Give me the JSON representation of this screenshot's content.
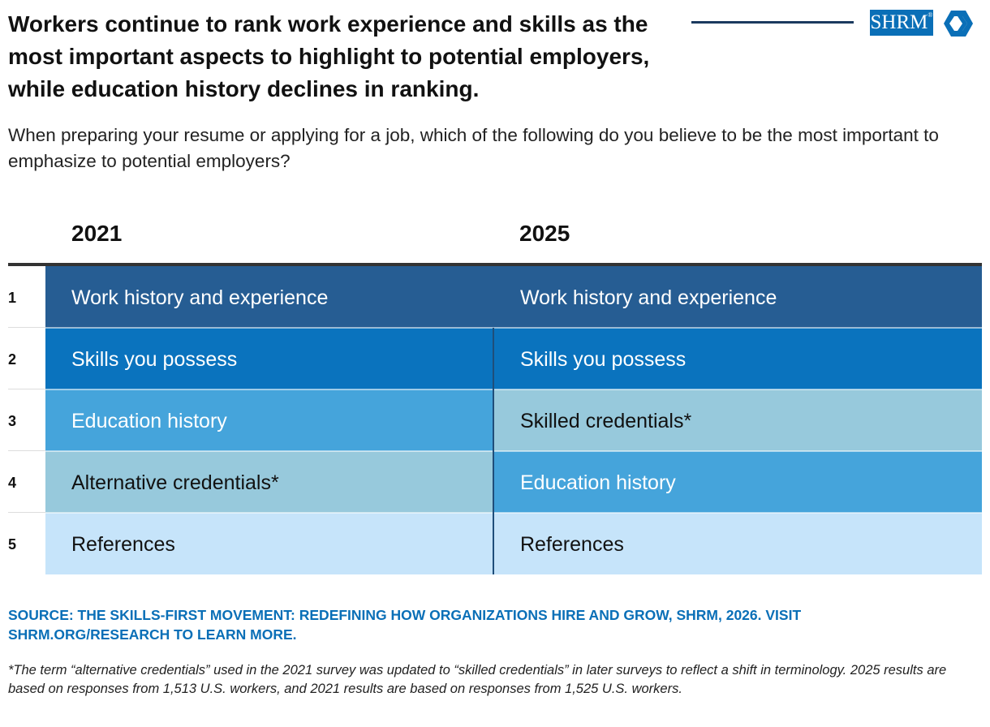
{
  "header": {
    "title": "Workers continue to rank work experience and skills as the most important aspects to highlight to potential employers, while education history declines in ranking.",
    "subtitle": "When preparing your resume or applying for a job, which of the following do you believe to be the most important to emphasize to potential employers?",
    "logo_text": "SHRM",
    "logo_registered": "®"
  },
  "chart_data": {
    "type": "table",
    "columns": [
      "2021",
      "2025"
    ],
    "ranks": [
      "1",
      "2",
      "3",
      "4",
      "5"
    ],
    "rows": [
      {
        "rank": "1",
        "2021": "Work history and experience",
        "2025": "Work history and experience"
      },
      {
        "rank": "2",
        "2021": "Skills you possess",
        "2025": "Skills you possess"
      },
      {
        "rank": "3",
        "2021": "Education history",
        "2025": "Skilled credentials*"
      },
      {
        "rank": "4",
        "2021": "Alternative credentials*",
        "2025": "Education history"
      },
      {
        "rank": "5",
        "2021": "References",
        "2025": "References"
      }
    ],
    "category_colors": {
      "Work history and experience": "#265d93",
      "Skills you possess": "#0a73be",
      "Education history": "#45a4db",
      "Alternative credentials*": "#97c9dc",
      "Skilled credentials*": "#97c9dc",
      "References": "#c6e4fa"
    },
    "text_colors": {
      "Work history and experience": "#ffffff",
      "Skills you possess": "#ffffff",
      "Education history": "#ffffff",
      "Alternative credentials*": "#111111",
      "Skilled credentials*": "#111111",
      "References": "#111111"
    }
  },
  "source": "SOURCE: THE SKILLS-FIRST MOVEMENT: REDEFINING HOW ORGANIZATIONS HIRE AND GROW, SHRM, 2026. VISIT SHRM.ORG/RESEARCH TO LEARN MORE.",
  "footnote": "*The term “alternative credentials” used in the 2021 survey was updated to “skilled credentials” in later surveys to reflect a shift in terminology. 2025 results are based on responses from 1,513 U.S. workers, and 2021 results are based on responses from 1,525 U.S. workers."
}
